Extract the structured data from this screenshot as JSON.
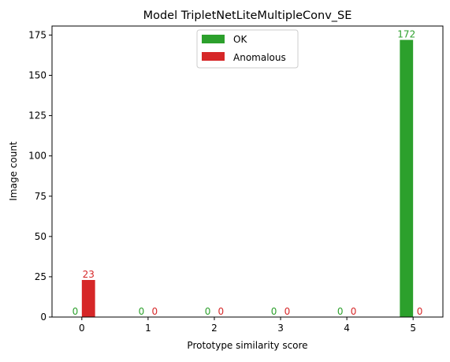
{
  "chart_data": {
    "type": "bar",
    "title": "Model TripletNetLiteMultipleConv_SE",
    "xlabel": "Prototype similarity score",
    "ylabel": "Image count",
    "categories": [
      "0",
      "1",
      "2",
      "3",
      "4",
      "5"
    ],
    "xlim": [
      -0.45,
      5.45
    ],
    "ylim": [
      0,
      180.6
    ],
    "yticks": [
      0,
      25,
      50,
      75,
      100,
      125,
      150,
      175
    ],
    "bar_width": 0.2,
    "series": [
      {
        "name": "OK",
        "color": "#2ca02c",
        "values": [
          0,
          0,
          0,
          0,
          0,
          172
        ],
        "labels": [
          "0",
          "0",
          "0",
          "0",
          "0",
          "172"
        ]
      },
      {
        "name": "Anomalous",
        "color": "#d62728",
        "values": [
          23,
          0,
          0,
          0,
          0,
          0
        ],
        "labels": [
          "23",
          "0",
          "0",
          "0",
          "0",
          "0"
        ]
      }
    ],
    "legend": "upper-center",
    "grid": false
  }
}
